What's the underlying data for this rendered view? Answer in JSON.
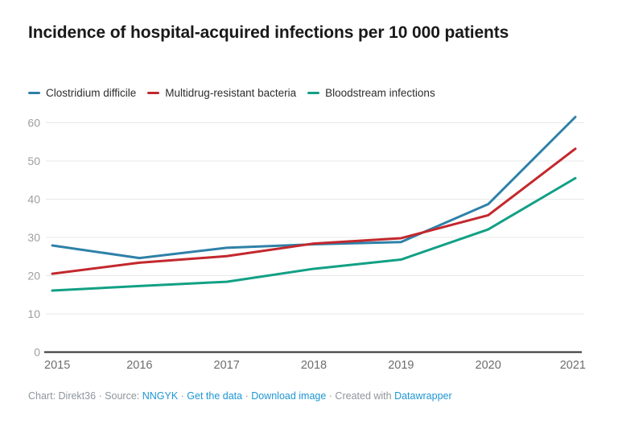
{
  "title": "Incidence of hospital-acquired infections per 10 000 patients",
  "legend": {
    "items": [
      {
        "label": "Clostridium difficile",
        "color": "#2e81a8"
      },
      {
        "label": "Multidrug-resistant bacteria",
        "color": "#c3282e"
      },
      {
        "label": "Bloodstream infections",
        "color": "#12a085"
      }
    ]
  },
  "footer": {
    "parts": [
      {
        "text": "Chart: Direkt36 · Source: ",
        "link": false
      },
      {
        "text": "NNGYK",
        "link": true
      },
      {
        "text": " · ",
        "link": false
      },
      {
        "text": "Get the data",
        "link": true
      },
      {
        "text": " · ",
        "link": false
      },
      {
        "text": "Download image",
        "link": true
      },
      {
        "text": " · ",
        "link": false
      },
      {
        "text": "Created with ",
        "link": false
      },
      {
        "text": "Datawrapper",
        "link": true
      }
    ]
  },
  "colors": {
    "title": "#191919",
    "legend_text": "#2d2d2d",
    "grid": "#e8e8e8",
    "axis": "#2f2f2f",
    "y_tick_label": "#9e9e9e",
    "x_tick_label": "#6d6d6d",
    "footer_text": "#8f969b",
    "footer_link": "#1e96d2"
  },
  "chart_data": {
    "type": "line",
    "title": "Incidence of hospital-acquired infections per 10 000 patients",
    "xlabel": "",
    "ylabel": "",
    "x": [
      2015,
      2016,
      2017,
      2018,
      2019,
      2020,
      2021
    ],
    "series": [
      {
        "name": "Clostridium difficile",
        "color": "#2e81a8",
        "values": [
          27.9,
          24.6,
          27.3,
          28.2,
          28.8,
          38.7,
          61.5
        ]
      },
      {
        "name": "Multidrug-resistant bacteria",
        "color": "#c3282e",
        "values": [
          20.5,
          23.4,
          25.1,
          28.4,
          29.8,
          35.8,
          53.2
        ]
      },
      {
        "name": "Bloodstream infections",
        "color": "#12a085",
        "values": [
          16.1,
          17.3,
          18.4,
          21.8,
          24.2,
          32.1,
          45.5
        ]
      }
    ],
    "ylim": [
      0,
      62
    ],
    "yticks": [
      0,
      10,
      20,
      30,
      40,
      50,
      60
    ],
    "grid": true,
    "legend_position": "top"
  }
}
